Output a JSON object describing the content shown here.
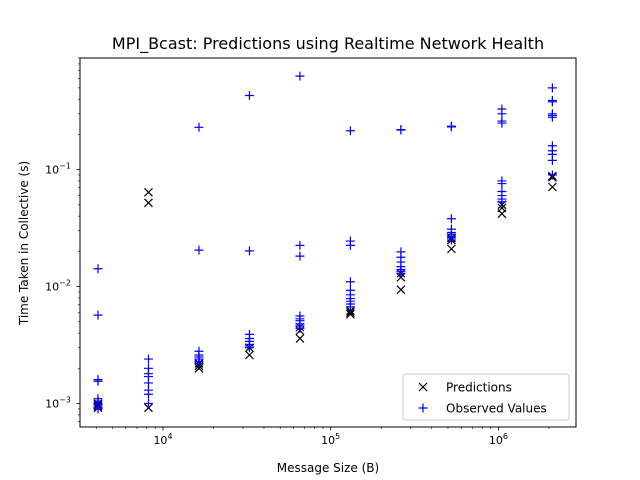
{
  "chart_data": {
    "type": "scatter",
    "title": "MPI_Bcast: Predictions using Realtime Network Health",
    "xlabel": "Message Size (B)",
    "ylabel": "Time Taken in Collective (s)",
    "xscale": "log",
    "yscale": "log",
    "xlim": [
      3200,
      2900000
    ],
    "ylim": [
      0.00063,
      0.9
    ],
    "xticks": [
      {
        "value": 10000,
        "base": "10",
        "exp": "4"
      },
      {
        "value": 100000,
        "base": "10",
        "exp": "5"
      },
      {
        "value": 1000000,
        "base": "10",
        "exp": "6"
      }
    ],
    "yticks": [
      {
        "value": 0.001,
        "base": "10",
        "exp": "−3"
      },
      {
        "value": 0.01,
        "base": "10",
        "exp": "−2"
      },
      {
        "value": 0.1,
        "base": "10",
        "exp": "−1"
      }
    ],
    "grid": false,
    "legend_position": "lower-right",
    "series": [
      {
        "name": "Predictions",
        "marker": "x",
        "color": "#000000",
        "points": [
          [
            4096,
            0.00095
          ],
          [
            4096,
            0.001
          ],
          [
            4096,
            0.00098
          ],
          [
            4096,
            0.00092
          ],
          [
            8192,
            0.064
          ],
          [
            8192,
            0.052
          ],
          [
            8192,
            0.00092
          ],
          [
            16384,
            0.0022
          ],
          [
            16384,
            0.0021
          ],
          [
            16384,
            0.002
          ],
          [
            32768,
            0.0026
          ],
          [
            32768,
            0.003
          ],
          [
            65536,
            0.0036
          ],
          [
            65536,
            0.0042
          ],
          [
            65536,
            0.0045
          ],
          [
            131072,
            0.006
          ],
          [
            131072,
            0.0062
          ],
          [
            131072,
            0.0058
          ],
          [
            262144,
            0.0094
          ],
          [
            262144,
            0.012
          ],
          [
            262144,
            0.013
          ],
          [
            524288,
            0.021
          ],
          [
            524288,
            0.025
          ],
          [
            524288,
            0.026
          ],
          [
            1048576,
            0.042
          ],
          [
            1048576,
            0.047
          ],
          [
            1048576,
            0.05
          ],
          [
            2097152,
            0.071
          ],
          [
            2097152,
            0.086
          ],
          [
            2097152,
            0.088
          ]
        ]
      },
      {
        "name": "Observed Values",
        "marker": "+",
        "color": "#0000ff",
        "points": [
          [
            4096,
            0.0142
          ],
          [
            4096,
            0.0057
          ],
          [
            4096,
            0.0016
          ],
          [
            4096,
            0.00155
          ],
          [
            4096,
            0.0011
          ],
          [
            4096,
            0.00105
          ],
          [
            4096,
            0.001
          ],
          [
            4096,
            0.00097
          ],
          [
            4096,
            0.00093
          ],
          [
            4096,
            0.0009
          ],
          [
            8192,
            0.0024
          ],
          [
            8192,
            0.002
          ],
          [
            8192,
            0.0018
          ],
          [
            8192,
            0.0017
          ],
          [
            8192,
            0.0015
          ],
          [
            8192,
            0.0013
          ],
          [
            8192,
            0.0012
          ],
          [
            8192,
            0.001
          ],
          [
            16384,
            0.23
          ],
          [
            16384,
            0.0205
          ],
          [
            16384,
            0.0028
          ],
          [
            16384,
            0.0026
          ],
          [
            16384,
            0.0025
          ],
          [
            16384,
            0.0024
          ],
          [
            16384,
            0.0023
          ],
          [
            16384,
            0.0022
          ],
          [
            32768,
            0.43
          ],
          [
            32768,
            0.0202
          ],
          [
            32768,
            0.0039
          ],
          [
            32768,
            0.0036
          ],
          [
            32768,
            0.0034
          ],
          [
            32768,
            0.0032
          ],
          [
            32768,
            0.0031
          ],
          [
            32768,
            0.003
          ],
          [
            65536,
            0.63
          ],
          [
            65536,
            0.0225
          ],
          [
            65536,
            0.0182
          ],
          [
            65536,
            0.0056
          ],
          [
            65536,
            0.0053
          ],
          [
            65536,
            0.0051
          ],
          [
            65536,
            0.0048
          ],
          [
            65536,
            0.0046
          ],
          [
            65536,
            0.0044
          ],
          [
            131072,
            0.215
          ],
          [
            131072,
            0.0245
          ],
          [
            131072,
            0.0225
          ],
          [
            131072,
            0.011
          ],
          [
            131072,
            0.0093
          ],
          [
            131072,
            0.0085
          ],
          [
            131072,
            0.0079
          ],
          [
            131072,
            0.0075
          ],
          [
            131072,
            0.0071
          ],
          [
            131072,
            0.0067
          ],
          [
            262144,
            0.22
          ],
          [
            262144,
            0.218
          ],
          [
            262144,
            0.0198
          ],
          [
            262144,
            0.0178
          ],
          [
            262144,
            0.0162
          ],
          [
            262144,
            0.0148
          ],
          [
            262144,
            0.014
          ],
          [
            262144,
            0.0135
          ],
          [
            262144,
            0.013
          ],
          [
            524288,
            0.235
          ],
          [
            524288,
            0.232
          ],
          [
            524288,
            0.038
          ],
          [
            524288,
            0.031
          ],
          [
            524288,
            0.029
          ],
          [
            524288,
            0.028
          ],
          [
            524288,
            0.027
          ],
          [
            524288,
            0.026
          ],
          [
            524288,
            0.025
          ],
          [
            1048576,
            0.33
          ],
          [
            1048576,
            0.3
          ],
          [
            1048576,
            0.26
          ],
          [
            1048576,
            0.25
          ],
          [
            1048576,
            0.08
          ],
          [
            1048576,
            0.076
          ],
          [
            1048576,
            0.065
          ],
          [
            1048576,
            0.06
          ],
          [
            1048576,
            0.056
          ],
          [
            1048576,
            0.053
          ],
          [
            2097152,
            0.5
          ],
          [
            2097152,
            0.39
          ],
          [
            2097152,
            0.38
          ],
          [
            2097152,
            0.3
          ],
          [
            2097152,
            0.29
          ],
          [
            2097152,
            0.28
          ],
          [
            2097152,
            0.16
          ],
          [
            2097152,
            0.145
          ],
          [
            2097152,
            0.135
          ],
          [
            2097152,
            0.12
          ],
          [
            2097152,
            0.09
          ]
        ]
      }
    ]
  }
}
